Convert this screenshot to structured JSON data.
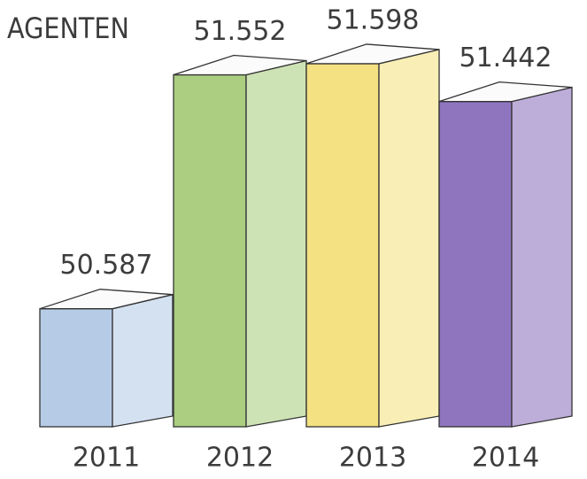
{
  "chart_data": {
    "type": "bar3d",
    "title": "AGENTEN",
    "categories": [
      "2011",
      "2012",
      "2013",
      "2014"
    ],
    "values": [
      50587,
      51552,
      51598,
      51442
    ],
    "value_labels": [
      "50.587",
      "51.552",
      "51.598",
      "51.442"
    ],
    "colors": [
      "#a9c3e2",
      "#9cc66a",
      "#f1dc6c",
      "#7b5cb3"
    ],
    "ylim": [
      50100,
      51700
    ]
  }
}
